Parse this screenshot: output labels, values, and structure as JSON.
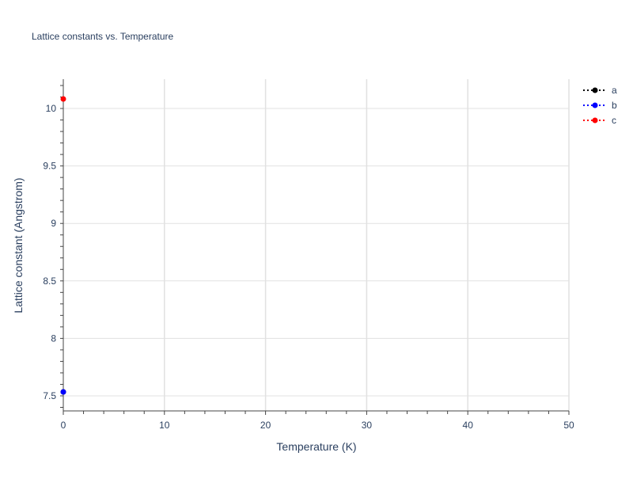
{
  "chart_data": {
    "type": "line",
    "title": "Lattice constants vs. Temperature",
    "xlabel": "Temperature (K)",
    "ylabel": "Lattice constant (Angstrom)",
    "xlim": [
      0,
      50
    ],
    "ylim": [
      7.369,
      10.255
    ],
    "xticks": [
      0,
      10,
      20,
      30,
      40,
      50
    ],
    "yticks": [
      7.5,
      8,
      8.5,
      9,
      9.5,
      10
    ],
    "ytick_labels": [
      "7.5",
      "8",
      "8.5",
      "9",
      "9.5",
      "10"
    ],
    "grid": true,
    "legend_position": "top-right",
    "series": [
      {
        "name": "a",
        "color": "#000000",
        "x": [
          0
        ],
        "y": [
          7.534
        ]
      },
      {
        "name": "b",
        "color": "#0000ff",
        "x": [
          0
        ],
        "y": [
          7.534
        ]
      },
      {
        "name": "c",
        "color": "#ff0000",
        "x": [
          0
        ],
        "y": [
          10.083
        ]
      }
    ]
  }
}
